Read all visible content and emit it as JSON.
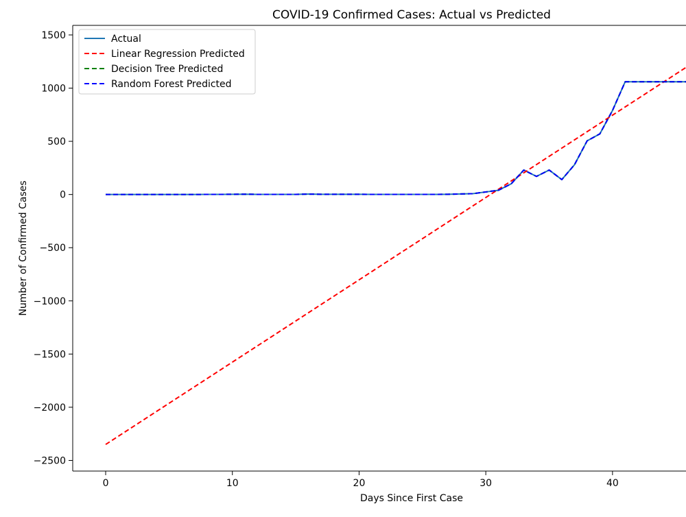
{
  "chart_data": {
    "type": "line",
    "title": "COVID-19 Confirmed Cases: Actual vs Predicted",
    "xlabel": "Days Since First Case",
    "ylabel": "Number of Confirmed Cases",
    "xlim": [
      -2.6,
      45.8
    ],
    "ylim": [
      -2600,
      1590
    ],
    "xticks": [
      0,
      10,
      20,
      30,
      40
    ],
    "yticks": [
      1500,
      1000,
      500,
      0,
      -500,
      -1000,
      -1500,
      -2000,
      -2500
    ],
    "legend_position": "top-left",
    "series": [
      {
        "name": "Actual",
        "color": "#1f77b4",
        "style": "solid",
        "x": [
          0,
          1,
          2,
          3,
          4,
          5,
          6,
          7,
          8,
          9,
          10,
          11,
          12,
          13,
          14,
          15,
          16,
          17,
          18,
          19,
          20,
          21,
          22,
          23,
          24,
          25,
          26,
          27,
          28,
          29,
          30,
          31,
          32,
          33,
          34,
          35,
          36,
          37,
          38,
          39,
          40,
          41,
          42,
          43,
          44,
          45,
          46
        ],
        "y": [
          0,
          0,
          0,
          0,
          0,
          0,
          0,
          0,
          1,
          1,
          2,
          3,
          1,
          1,
          1,
          1,
          4,
          2,
          2,
          2,
          2,
          1,
          1,
          1,
          1,
          1,
          1,
          2,
          5,
          8,
          24,
          40,
          100,
          230,
          170,
          230,
          140,
          280,
          505,
          570,
          790,
          1060,
          1060,
          1060,
          1060,
          1060,
          1060
        ]
      },
      {
        "name": "Linear Regression Predicted",
        "color": "#ff0000",
        "style": "dashed",
        "x": [
          0,
          46
        ],
        "y": [
          -2350,
          1210
        ]
      },
      {
        "name": "Decision Tree Predicted",
        "color": "#008000",
        "style": "dashed",
        "x": [
          0,
          1,
          2,
          3,
          4,
          5,
          6,
          7,
          8,
          9,
          10,
          11,
          12,
          13,
          14,
          15,
          16,
          17,
          18,
          19,
          20,
          21,
          22,
          23,
          24,
          25,
          26,
          27,
          28,
          29,
          30,
          31,
          32,
          33,
          34,
          35,
          36,
          37,
          38,
          39,
          40,
          41,
          42,
          43,
          44,
          45,
          46
        ],
        "y": [
          0,
          0,
          0,
          0,
          0,
          0,
          0,
          0,
          1,
          1,
          2,
          3,
          1,
          1,
          1,
          1,
          4,
          2,
          2,
          2,
          2,
          1,
          1,
          1,
          1,
          1,
          1,
          2,
          5,
          8,
          24,
          40,
          100,
          230,
          170,
          230,
          140,
          280,
          505,
          570,
          790,
          1060,
          1060,
          1060,
          1060,
          1060,
          1060
        ]
      },
      {
        "name": "Random Forest Predicted",
        "color": "#0000ff",
        "style": "dashed",
        "x": [
          0,
          1,
          2,
          3,
          4,
          5,
          6,
          7,
          8,
          9,
          10,
          11,
          12,
          13,
          14,
          15,
          16,
          17,
          18,
          19,
          20,
          21,
          22,
          23,
          24,
          25,
          26,
          27,
          28,
          29,
          30,
          31,
          32,
          33,
          34,
          35,
          36,
          37,
          38,
          39,
          40,
          41,
          42,
          43,
          44,
          45,
          46
        ],
        "y": [
          0,
          0,
          0,
          0,
          0,
          0,
          0,
          0,
          1,
          1,
          2,
          3,
          1,
          1,
          1,
          1,
          4,
          2,
          2,
          2,
          2,
          1,
          1,
          1,
          1,
          1,
          1,
          2,
          5,
          8,
          24,
          40,
          100,
          230,
          170,
          230,
          140,
          280,
          505,
          570,
          790,
          1060,
          1060,
          1060,
          1060,
          1060,
          1060
        ]
      }
    ]
  }
}
